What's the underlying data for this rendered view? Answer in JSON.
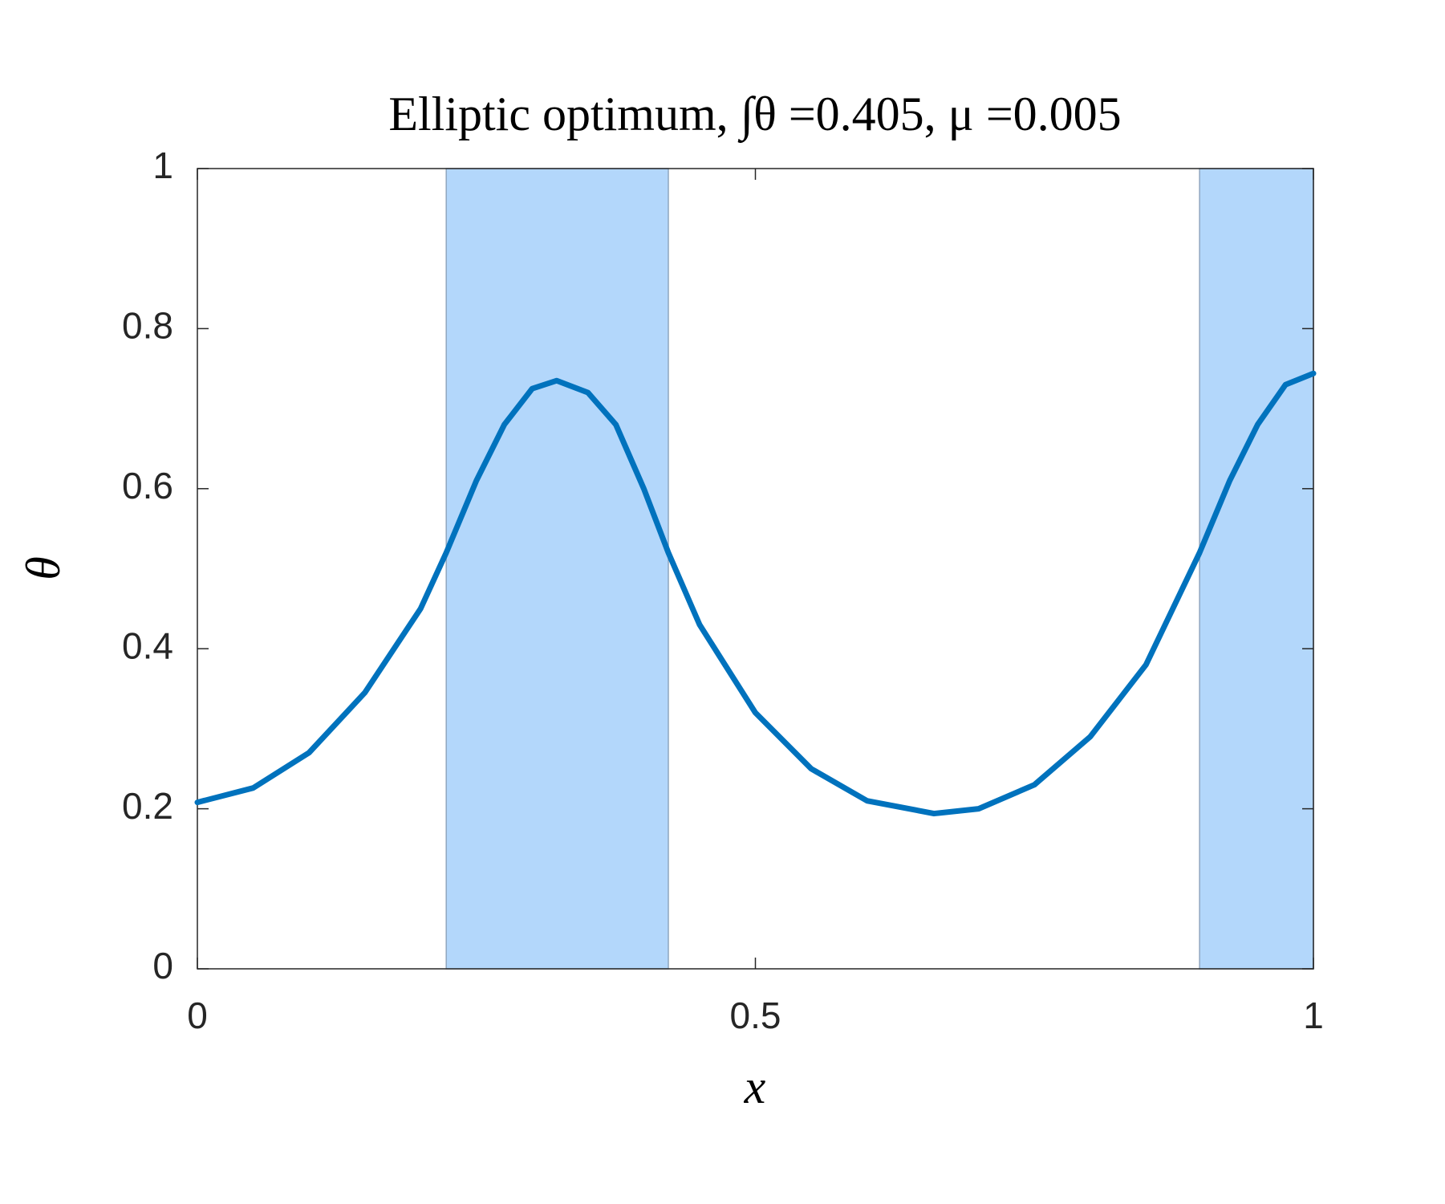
{
  "chart_data": {
    "type": "line",
    "title": "Elliptic optimum, ∫θ =0.405, μ =0.005",
    "xlabel": "x",
    "ylabel": "θ",
    "x": [
      0,
      0.05,
      0.1,
      0.15,
      0.2,
      0.223,
      0.25,
      0.275,
      0.3,
      0.322,
      0.35,
      0.375,
      0.4,
      0.422,
      0.45,
      0.5,
      0.55,
      0.6,
      0.66,
      0.7,
      0.75,
      0.8,
      0.85,
      0.898,
      0.925,
      0.95,
      0.975,
      1
    ],
    "series": [
      {
        "color": "#0072bd",
        "values": [
          0.208,
          0.226,
          0.27,
          0.345,
          0.45,
          0.52,
          0.61,
          0.68,
          0.725,
          0.735,
          0.72,
          0.68,
          0.6,
          0.52,
          0.43,
          0.32,
          0.25,
          0.21,
          0.194,
          0.2,
          0.23,
          0.29,
          0.38,
          0.52,
          0.61,
          0.68,
          0.73,
          0.744
        ]
      }
    ],
    "regions": [
      [
        0.223,
        0.422
      ],
      [
        0.898,
        1
      ]
    ],
    "region_color": "#b3d7fb",
    "xlim": [
      0,
      1
    ],
    "ylim": [
      0,
      1
    ],
    "xticks": [
      0,
      0.5,
      1
    ],
    "yticks": [
      0,
      0.2,
      0.4,
      0.6,
      0.8,
      1
    ],
    "grid": false
  }
}
